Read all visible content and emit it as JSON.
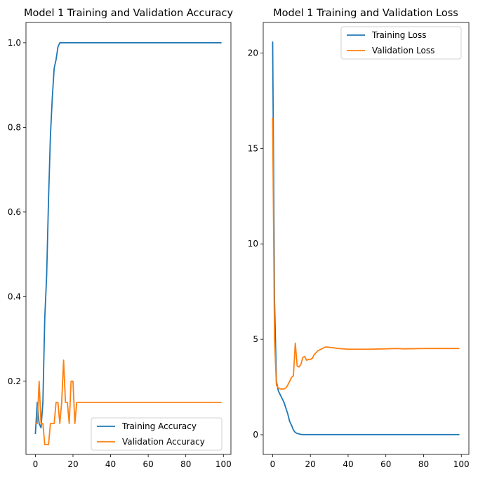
{
  "chart_data": [
    {
      "type": "line",
      "title": "Model 1 Training and Validation Accuracy",
      "xlabel": "",
      "ylabel": "",
      "xlim": [
        -5,
        104
      ],
      "ylim": [
        0.027,
        1.048
      ],
      "xticks": [
        0,
        20,
        40,
        60,
        80,
        100
      ],
      "yticks": [
        0.2,
        0.4,
        0.6,
        0.8,
        1.0
      ],
      "ytick_labels": [
        "0.2",
        "0.4",
        "0.6",
        "0.8",
        "1.0"
      ],
      "grid": false,
      "legend_position": "lower-right",
      "series": [
        {
          "name": "Training Accuracy",
          "color": "#1f77b4",
          "x": [
            0,
            1,
            2,
            3,
            4,
            5,
            6,
            7,
            8,
            9,
            10,
            11,
            12,
            13,
            14,
            15,
            16,
            17,
            18,
            19,
            20,
            25,
            30,
            40,
            50,
            60,
            70,
            80,
            90,
            99
          ],
          "y": [
            0.075,
            0.15,
            0.1,
            0.09,
            0.15,
            0.35,
            0.45,
            0.63,
            0.78,
            0.87,
            0.94,
            0.96,
            0.99,
            1.0,
            1.0,
            1.0,
            1.0,
            1.0,
            1.0,
            1.0,
            1.0,
            1.0,
            1.0,
            1.0,
            1.0,
            1.0,
            1.0,
            1.0,
            1.0,
            1.0
          ]
        },
        {
          "name": "Validation Accuracy",
          "color": "#ff7f0e",
          "x": [
            0,
            1,
            2,
            3,
            4,
            5,
            6,
            7,
            8,
            9,
            10,
            11,
            12,
            13,
            14,
            15,
            16,
            17,
            18,
            19,
            20,
            21,
            22,
            23,
            30,
            40,
            50,
            60,
            70,
            80,
            90,
            99
          ],
          "y": [
            0.1,
            0.1,
            0.2,
            0.1,
            0.1,
            0.05,
            0.05,
            0.05,
            0.1,
            0.1,
            0.1,
            0.15,
            0.15,
            0.1,
            0.15,
            0.25,
            0.15,
            0.15,
            0.1,
            0.2,
            0.2,
            0.1,
            0.15,
            0.15,
            0.15,
            0.15,
            0.15,
            0.15,
            0.15,
            0.15,
            0.15,
            0.15
          ]
        }
      ]
    },
    {
      "type": "line",
      "title": "Model 1 Training and Validation Loss",
      "xlabel": "",
      "ylabel": "",
      "xlim": [
        -5,
        104
      ],
      "ylim": [
        -1.03,
        21.6
      ],
      "xticks": [
        0,
        20,
        40,
        60,
        80,
        100
      ],
      "yticks": [
        0,
        5,
        10,
        15,
        20
      ],
      "ytick_labels": [
        "0",
        "5",
        "10",
        "15",
        "20"
      ],
      "grid": false,
      "legend_position": "upper-right",
      "series": [
        {
          "name": "Training Loss",
          "color": "#1f77b4",
          "x": [
            0,
            1,
            2,
            3,
            4,
            5,
            6,
            7,
            8,
            9,
            10,
            11,
            12,
            13,
            14,
            15,
            16,
            17,
            18,
            20,
            25,
            30,
            40,
            50,
            60,
            70,
            80,
            90,
            99
          ],
          "y": [
            20.6,
            7.0,
            2.8,
            2.3,
            2.1,
            1.9,
            1.7,
            1.4,
            1.1,
            0.7,
            0.5,
            0.25,
            0.12,
            0.07,
            0.04,
            0.02,
            0.01,
            0.01,
            0.01,
            0.01,
            0.01,
            0.01,
            0.01,
            0.01,
            0.01,
            0.01,
            0.01,
            0.01,
            0.01
          ]
        },
        {
          "name": "Validation Loss",
          "color": "#ff7f0e",
          "x": [
            0,
            1,
            2,
            3,
            4,
            5,
            6,
            7,
            8,
            9,
            10,
            11,
            12,
            13,
            14,
            15,
            16,
            17,
            18,
            19,
            20,
            21,
            22,
            24,
            26,
            28,
            30,
            35,
            40,
            50,
            60,
            65,
            70,
            80,
            90,
            99
          ],
          "y": [
            16.6,
            5.0,
            2.6,
            2.45,
            2.4,
            2.4,
            2.4,
            2.45,
            2.6,
            2.8,
            3.0,
            3.1,
            4.8,
            3.6,
            3.55,
            3.7,
            4.05,
            4.1,
            3.9,
            3.95,
            3.95,
            4.0,
            4.2,
            4.4,
            4.5,
            4.6,
            4.58,
            4.52,
            4.48,
            4.48,
            4.5,
            4.52,
            4.5,
            4.52,
            4.52,
            4.52
          ]
        }
      ]
    }
  ]
}
